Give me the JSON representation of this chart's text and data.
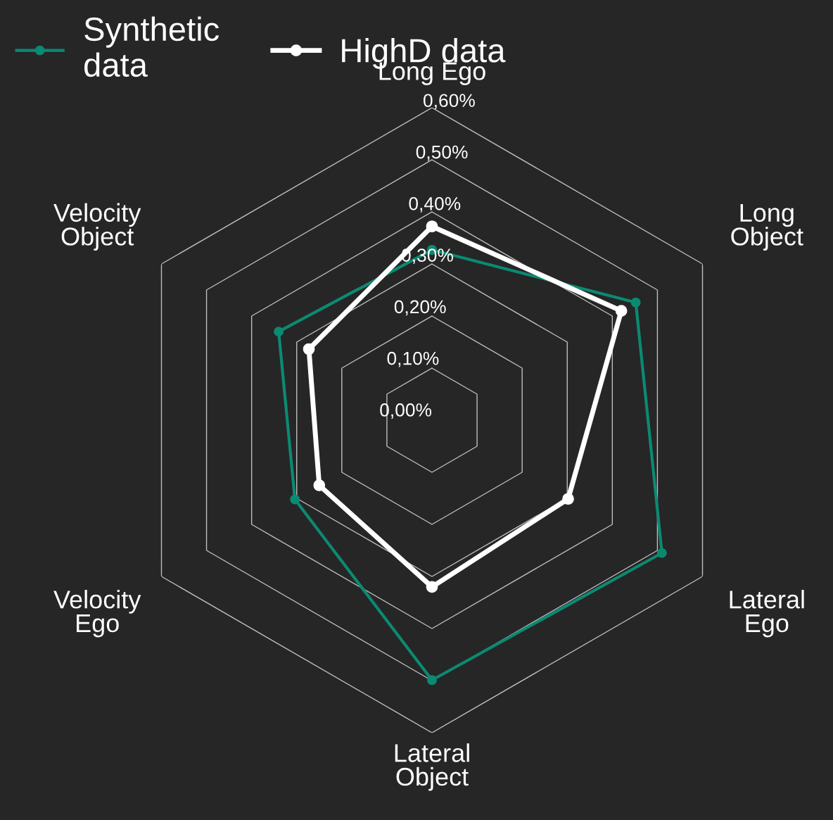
{
  "chart_data": {
    "type": "radar",
    "categories": [
      "Long Ego",
      "Long\nObject",
      "Lateral\nEgo",
      "Lateral\nObject",
      "Velocity\nEgo",
      "Velocity\nObject"
    ],
    "series": [
      {
        "name": "Synthetic data",
        "color": "#0b8a72",
        "values": [
          0.327,
          0.452,
          0.51,
          0.499,
          0.304,
          0.34
        ]
      },
      {
        "name": "HighD data",
        "color": "#ffffff",
        "values": [
          0.372,
          0.42,
          0.302,
          0.32,
          0.25,
          0.273
        ]
      }
    ],
    "ylim": [
      0,
      0.6
    ],
    "yticks": [
      {
        "value": 0,
        "label": "0,00%"
      },
      {
        "value": 0.1,
        "label": "0,10%"
      },
      {
        "value": 0.2,
        "label": "0,20%"
      },
      {
        "value": 0.3,
        "label": "0,30%"
      },
      {
        "value": 0.4,
        "label": "0,40%"
      },
      {
        "value": 0.5,
        "label": "0,50%"
      },
      {
        "value": 0.6,
        "label": "0,60%"
      }
    ],
    "grid": "y",
    "legend": "top left",
    "marker": "circle",
    "line_style": "solid"
  }
}
